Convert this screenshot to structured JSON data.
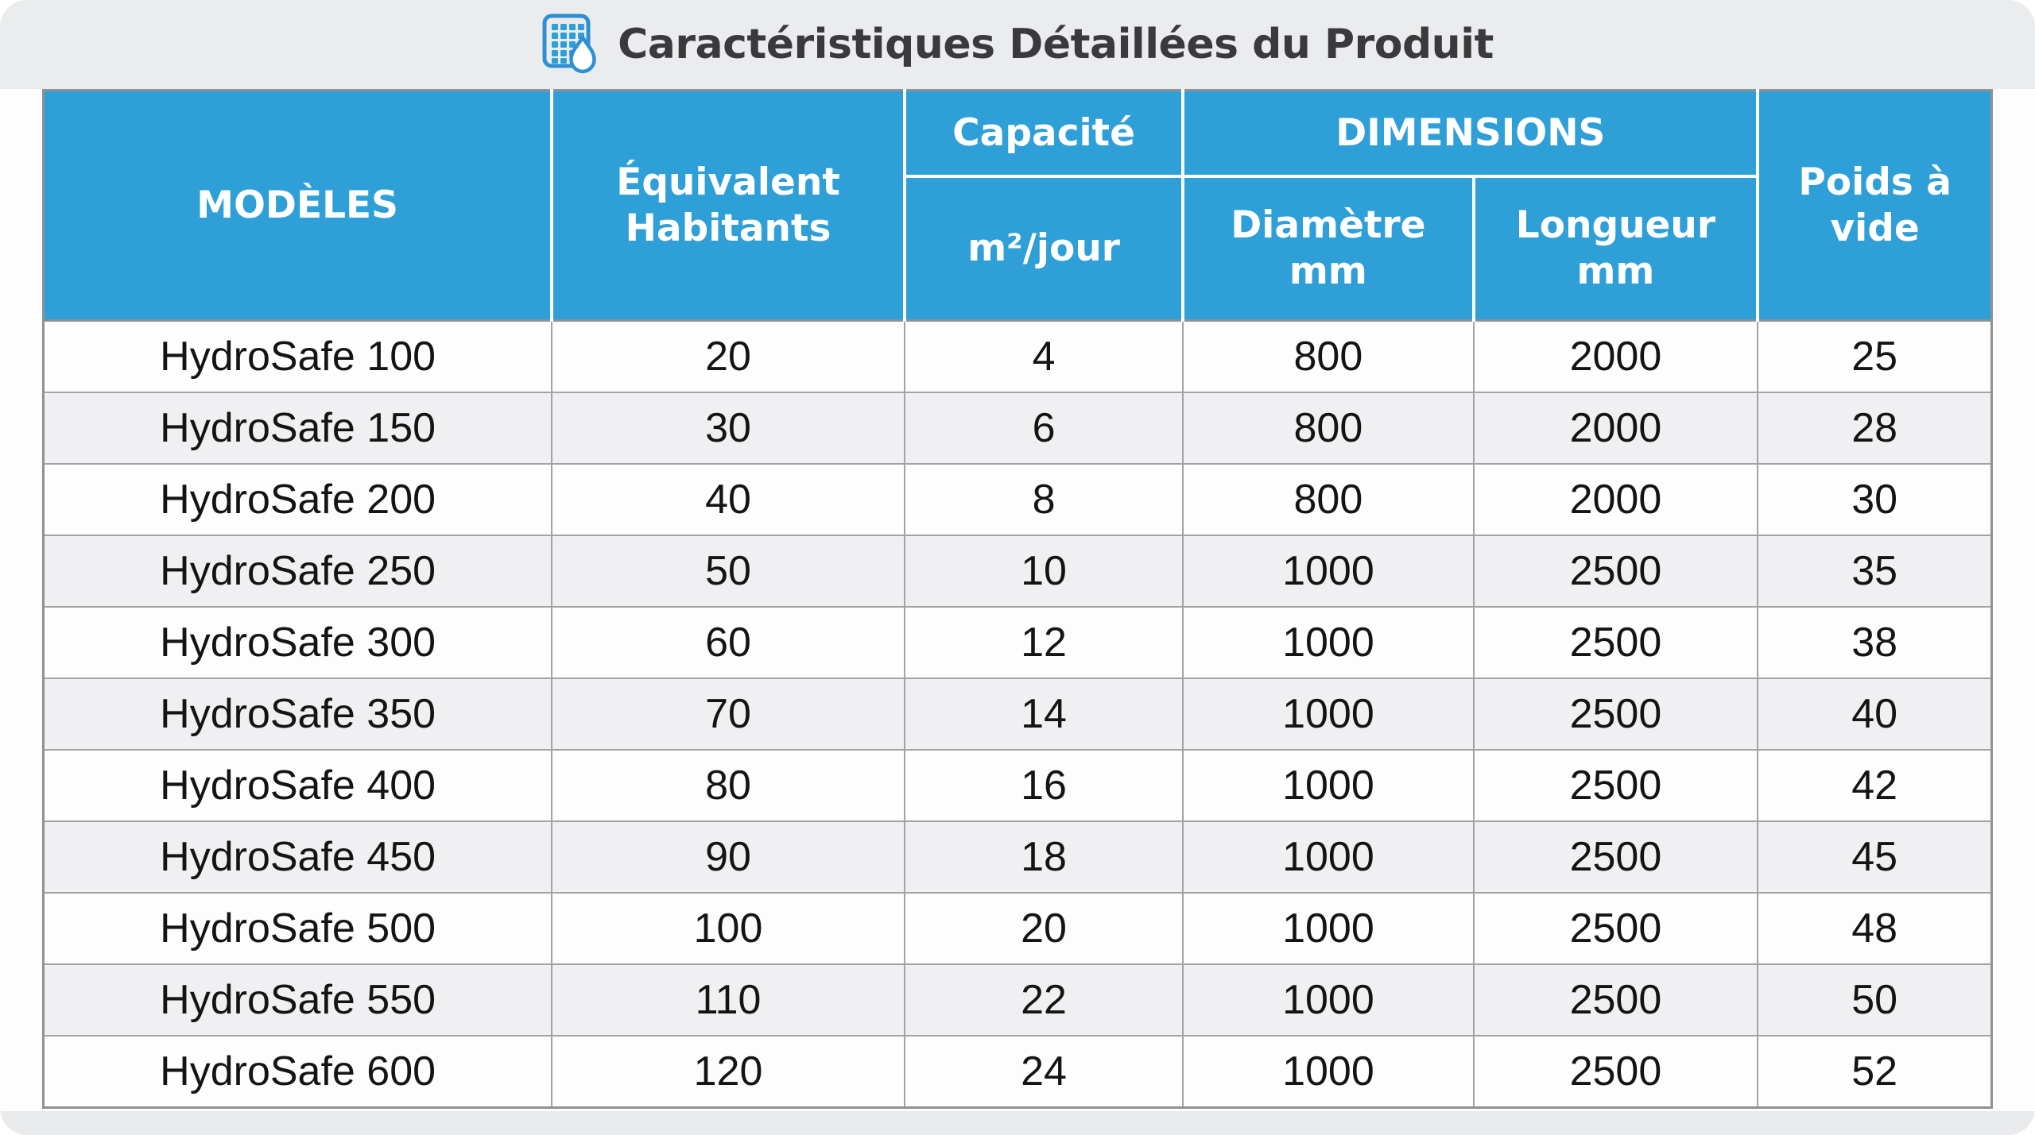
{
  "header": {
    "title": "Caractéristiques Détaillées du Produit",
    "icon": "table-droplet-icon"
  },
  "table": {
    "column_keys": [
      "model",
      "equivalent-habitants",
      "capacite-m2-jour",
      "diametre-mm",
      "longueur-mm",
      "poids-a-vide"
    ],
    "headers": {
      "models": "MODÈLES",
      "equivalent_habitants": "Équivalent\nHabitants",
      "capacite_group": "Capacité",
      "capacite_unit": "m²/jour",
      "dimensions_group": "DIMENSIONS",
      "diametre": "Diamètre\nmm",
      "longueur": "Longueur\nmm",
      "poids": "Poids à\nvide"
    },
    "rows": [
      [
        "HydroSafe 100",
        "20",
        "4",
        "800",
        "2000",
        "25"
      ],
      [
        "HydroSafe 150",
        "30",
        "6",
        "800",
        "2000",
        "28"
      ],
      [
        "HydroSafe 200",
        "40",
        "8",
        "800",
        "2000",
        "30"
      ],
      [
        "HydroSafe 250",
        "50",
        "10",
        "1000",
        "2500",
        "35"
      ],
      [
        "HydroSafe 300",
        "60",
        "12",
        "1000",
        "2500",
        "38"
      ],
      [
        "HydroSafe 350",
        "70",
        "14",
        "1000",
        "2500",
        "40"
      ],
      [
        "HydroSafe 400",
        "80",
        "16",
        "1000",
        "2500",
        "42"
      ],
      [
        "HydroSafe 450",
        "90",
        "18",
        "1000",
        "2500",
        "45"
      ],
      [
        "HydroSafe 500",
        "100",
        "20",
        "1000",
        "2500",
        "48"
      ],
      [
        "HydroSafe 550",
        "110",
        "22",
        "1000",
        "2500",
        "50"
      ],
      [
        "HydroSafe 600",
        "120",
        "24",
        "1000",
        "2500",
        "52"
      ]
    ]
  },
  "colors": {
    "header_blue": "#2f9fd7",
    "band_gray": "#ebeced",
    "stripe_gray": "#f0f0f2",
    "row_white": "#fdfdfe",
    "inner_border_gray": "#a3a3a5",
    "outer_border_gray": "#8f9193",
    "title_text": "#3a3a3c",
    "icon_blue": "#2e8fd2"
  }
}
